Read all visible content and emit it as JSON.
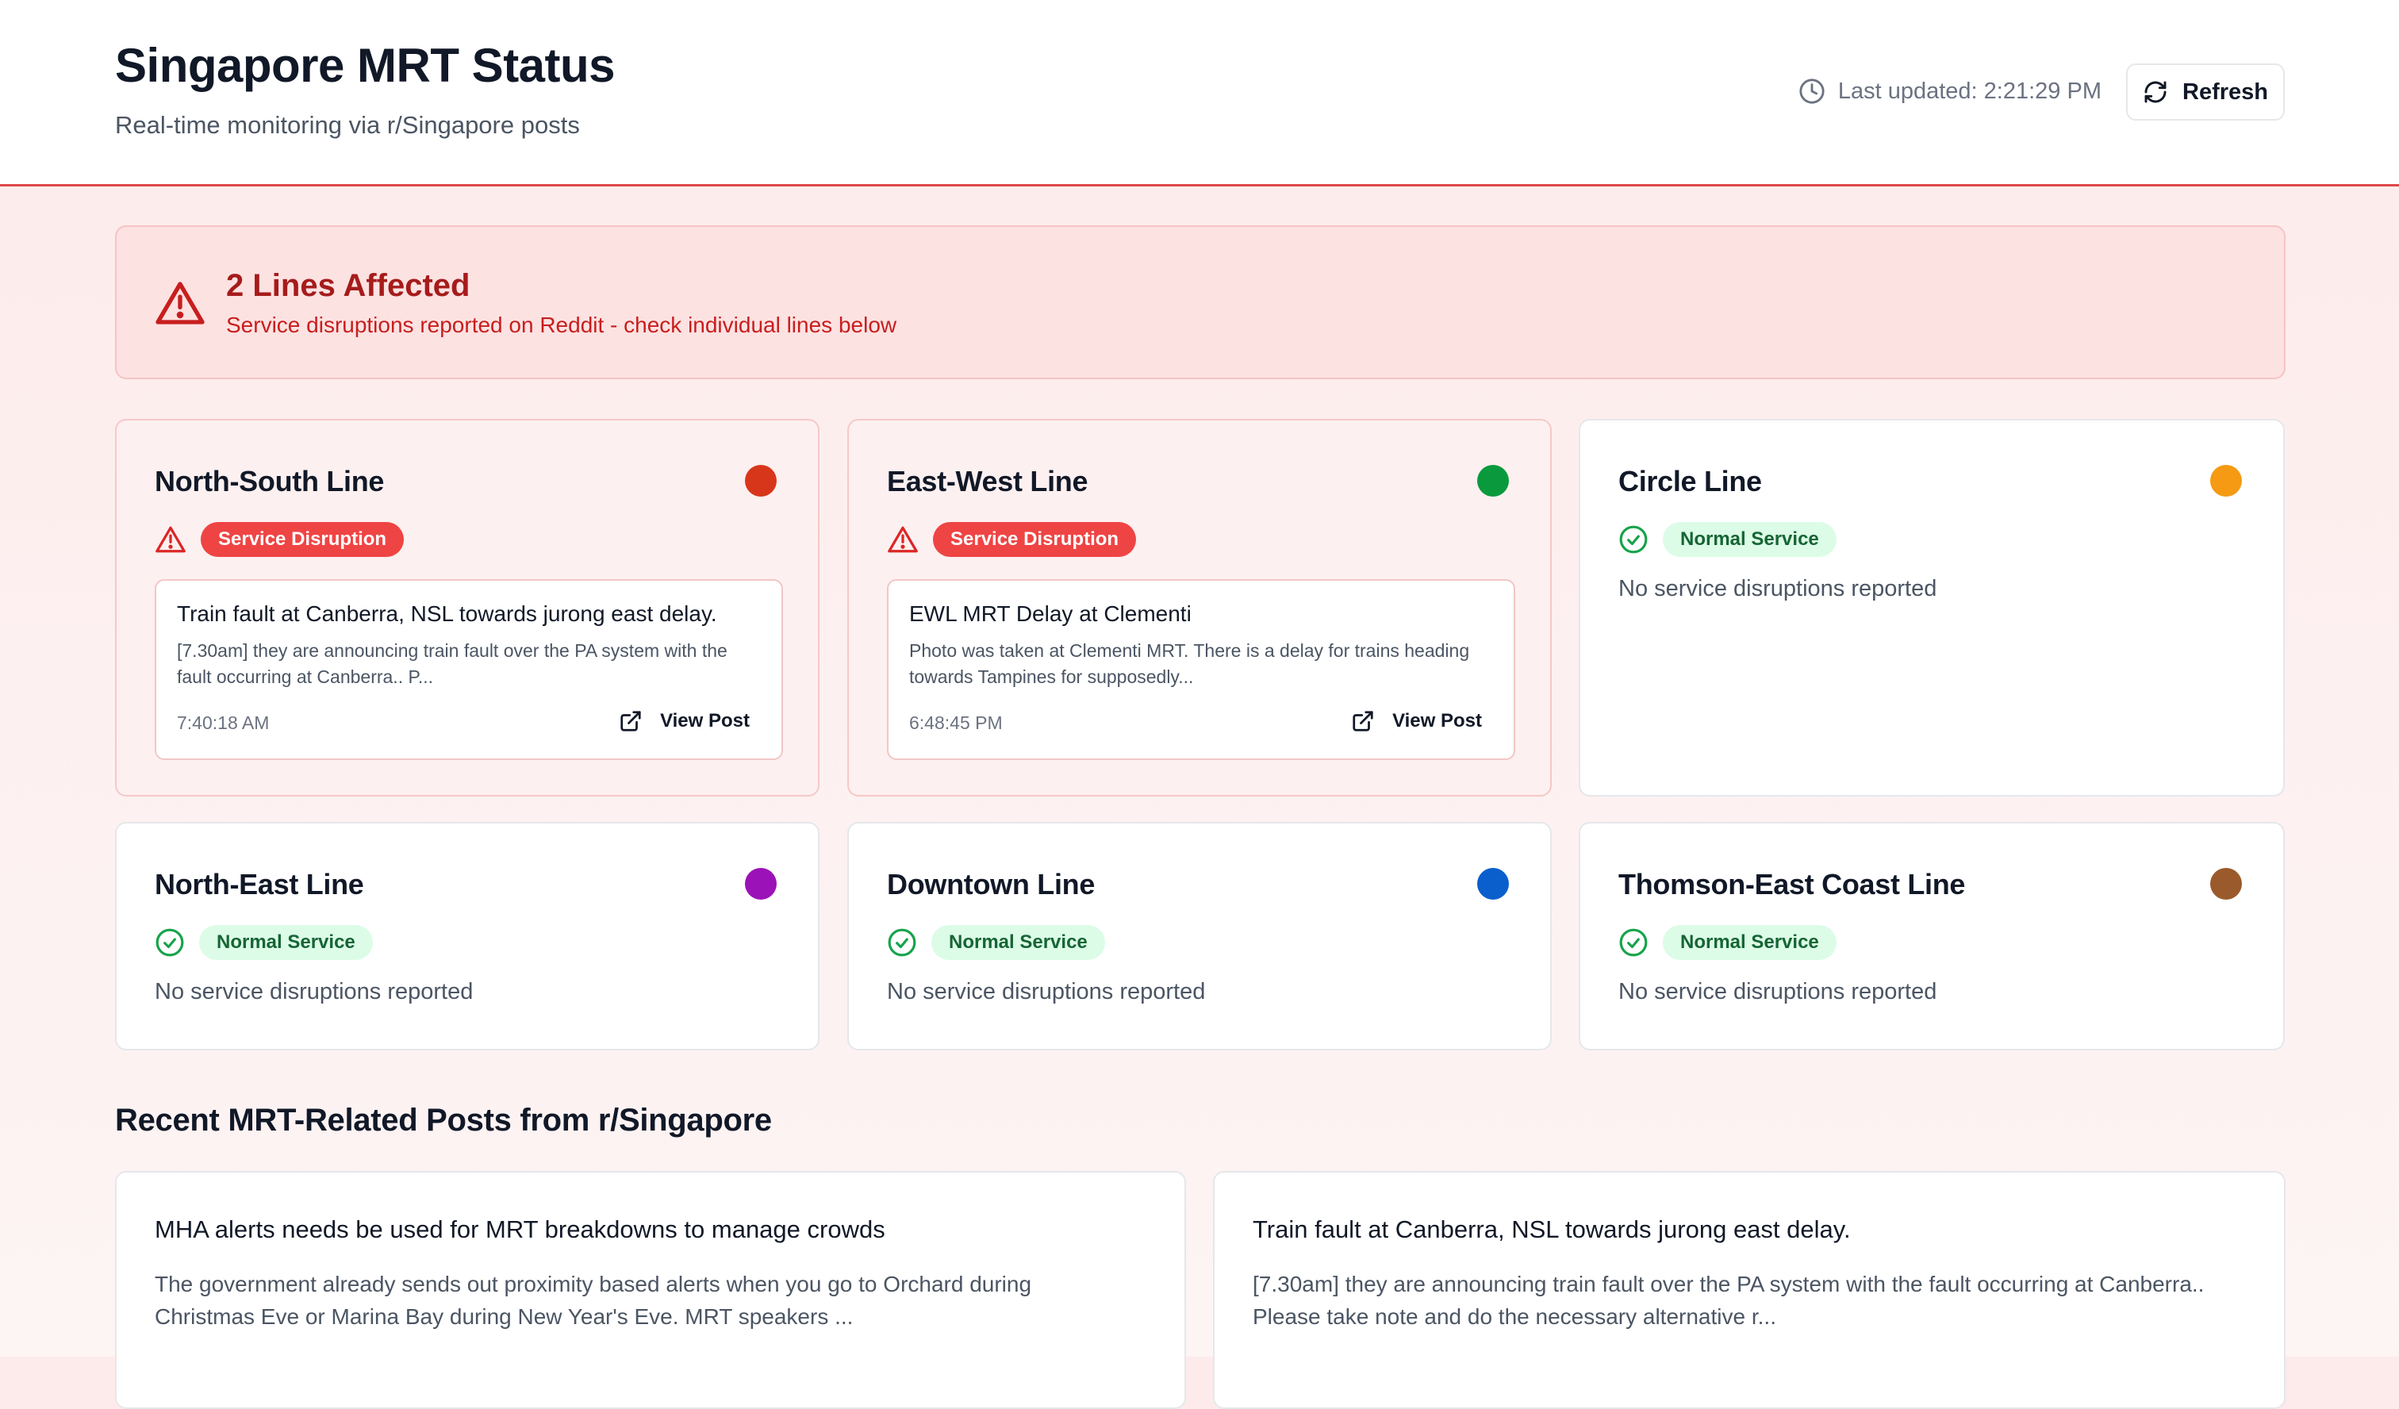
{
  "header": {
    "title": "Singapore MRT Status",
    "subtitle": "Real-time monitoring via r/Singapore posts",
    "last_updated": "Last updated: 2:21:29 PM",
    "refresh_label": "Refresh"
  },
  "alert": {
    "title": "2 Lines Affected",
    "description": "Service disruptions reported on Reddit - check individual lines below"
  },
  "lines": [
    {
      "name": "North-South Line",
      "color": "#d8361a",
      "status": "Service Disruption",
      "post": {
        "title": "Train fault at Canberra, NSL towards jurong east delay.",
        "desc": "[7.30am] they are announcing train fault over the PA system with the fault occurring at Canberra.. P...",
        "time": "7:40:18 AM",
        "link": "View Post"
      }
    },
    {
      "name": "East-West Line",
      "color": "#0a9a3d",
      "status": "Service Disruption",
      "post": {
        "title": "EWL MRT Delay at Clementi",
        "desc": "Photo was taken at Clementi MRT. There is a delay for trains heading towards Tampines for supposedly...",
        "time": "6:48:45 PM",
        "link": "View Post"
      }
    },
    {
      "name": "Circle Line",
      "color": "#f59a12",
      "status": "Normal Service",
      "note": "No service disruptions reported"
    },
    {
      "name": "North-East Line",
      "color": "#9b12b8",
      "status": "Normal Service",
      "note": "No service disruptions reported"
    },
    {
      "name": "Downtown Line",
      "color": "#0b5fcc",
      "status": "Normal Service",
      "note": "No service disruptions reported"
    },
    {
      "name": "Thomson-East Coast Line",
      "color": "#9b5a2b",
      "status": "Normal Service",
      "note": "No service disruptions reported"
    }
  ],
  "recent": {
    "title": "Recent MRT-Related Posts from r/Singapore",
    "posts": [
      {
        "title": "MHA alerts needs be used for MRT breakdowns to manage crowds",
        "desc": "The government already sends out proximity based alerts when you go to Orchard during Christmas Eve or Marina Bay during New Year's Eve. MRT speakers ..."
      },
      {
        "title": "Train fault at Canberra, NSL towards jurong east delay.",
        "desc": "[7.30am] they are announcing train fault over the PA system with the fault occurring at Canberra.. Please take note and do the necessary alternative r..."
      }
    ]
  },
  "icons": {
    "clock": "clock-icon",
    "refresh": "refresh-icon",
    "warning": "warning-triangle-icon",
    "check": "check-circle-icon",
    "external": "external-link-icon"
  }
}
